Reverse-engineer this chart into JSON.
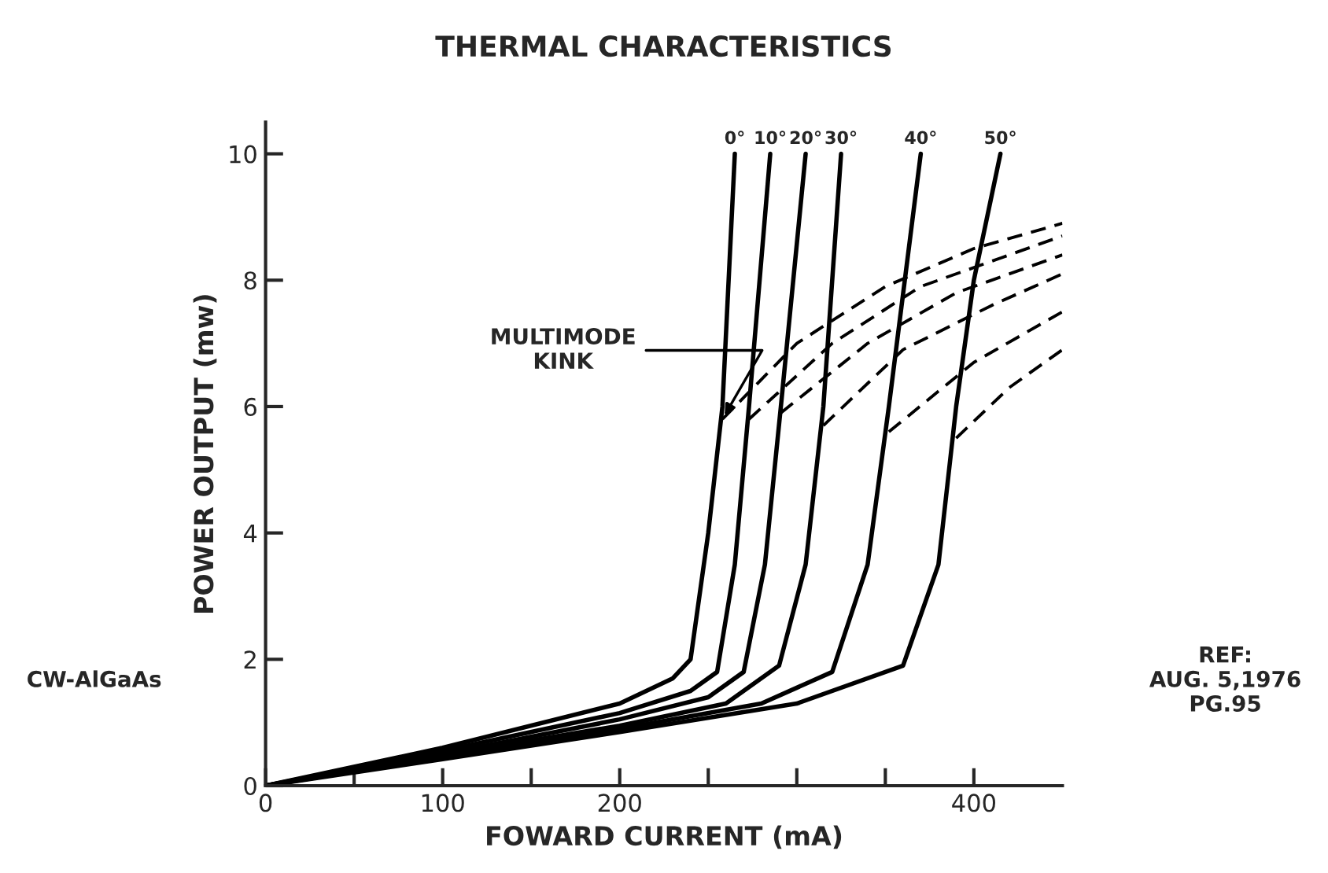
{
  "chart_data": {
    "type": "line",
    "title": "THERMAL CHARACTERISTICS",
    "xlabel": "FOWARD CURRENT (mA)",
    "ylabel": "POWER OUTPUT (mw)",
    "xlim": [
      0,
      450
    ],
    "ylim": [
      0,
      10.5
    ],
    "xticks": [
      0,
      {
        "value": 50,
        "label": null
      },
      100,
      {
        "value": 150,
        "label": null
      },
      200,
      {
        "value": 250,
        "label": null
      },
      {
        "value": 300,
        "label": null
      },
      {
        "value": 350,
        "label": null
      },
      400
    ],
    "yticks": [
      0,
      2,
      4,
      6,
      8,
      10
    ],
    "grid": false,
    "legend": false,
    "marker": "none",
    "color": "#000000",
    "series": [
      {
        "name": "0°",
        "line_style": "solid",
        "x": [
          0,
          100,
          200,
          230,
          240,
          250,
          258,
          265
        ],
        "values": [
          0,
          0.6,
          1.3,
          1.7,
          2.0,
          4.0,
          6.0,
          10
        ]
      },
      {
        "name": "10°",
        "line_style": "solid",
        "x": [
          0,
          100,
          200,
          240,
          255,
          265,
          273,
          285
        ],
        "values": [
          0,
          0.55,
          1.15,
          1.5,
          1.8,
          3.5,
          6.0,
          10
        ]
      },
      {
        "name": "20°",
        "line_style": "solid",
        "x": [
          0,
          100,
          200,
          250,
          270,
          282,
          291,
          305
        ],
        "values": [
          0,
          0.5,
          1.05,
          1.4,
          1.8,
          3.5,
          6.0,
          10
        ]
      },
      {
        "name": "30°",
        "line_style": "solid",
        "x": [
          0,
          100,
          200,
          260,
          290,
          305,
          315,
          325
        ],
        "values": [
          0,
          0.48,
          0.95,
          1.3,
          1.9,
          3.5,
          6.0,
          10
        ]
      },
      {
        "name": "40°",
        "line_style": "solid",
        "x": [
          0,
          100,
          200,
          280,
          320,
          340,
          352,
          370
        ],
        "values": [
          0,
          0.45,
          0.9,
          1.3,
          1.8,
          3.5,
          6.0,
          10
        ]
      },
      {
        "name": "50°",
        "line_style": "solid",
        "x": [
          0,
          100,
          200,
          300,
          360,
          380,
          390,
          400,
          415
        ],
        "values": [
          0,
          0.42,
          0.85,
          1.3,
          1.9,
          3.5,
          6.0,
          8.0,
          10
        ]
      },
      {
        "line_style": "dashed",
        "x": [
          258,
          300,
          350,
          400,
          450
        ],
        "values": [
          5.8,
          7.0,
          7.9,
          8.5,
          8.9
        ]
      },
      {
        "line_style": "dashed",
        "x": [
          273,
          320,
          370,
          420,
          450
        ],
        "values": [
          5.8,
          7.0,
          7.9,
          8.4,
          8.7
        ]
      },
      {
        "line_style": "dashed",
        "x": [
          291,
          340,
          390,
          450
        ],
        "values": [
          5.9,
          7.0,
          7.8,
          8.4
        ]
      },
      {
        "line_style": "dashed",
        "x": [
          315,
          360,
          410,
          450
        ],
        "values": [
          5.7,
          6.9,
          7.6,
          8.1
        ]
      },
      {
        "line_style": "dashed",
        "x": [
          352,
          400,
          450
        ],
        "values": [
          5.6,
          6.7,
          7.5
        ]
      },
      {
        "line_style": "dashed",
        "x": [
          390,
          420,
          450
        ],
        "values": [
          5.5,
          6.3,
          6.9
        ]
      }
    ],
    "annotations": [
      {
        "text": "MULTIMODE\nKINK",
        "x": 258,
        "y": 5.8
      },
      "CW-AlGaAs",
      "REF:\nAUG. 5,1976\nPG.95"
    ]
  }
}
